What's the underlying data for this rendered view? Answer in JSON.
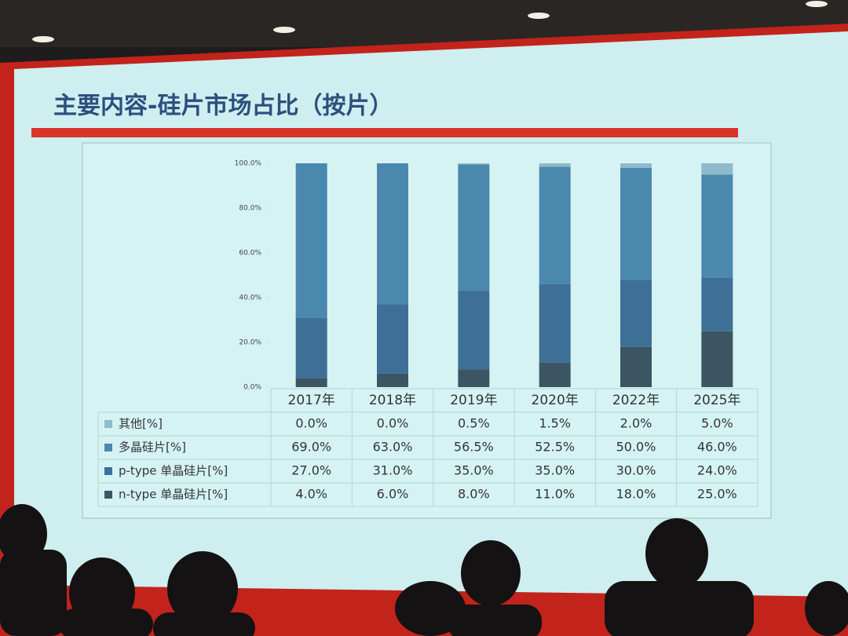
{
  "chart_data": {
    "type": "bar",
    "stacked": true,
    "title": "主要内容-硅片市场占比（按片）",
    "categories": [
      "2017年",
      "2018年",
      "2019年",
      "2020年",
      "2022年",
      "2025年"
    ],
    "series": [
      {
        "name": "其他[%]",
        "color": "#8fb9cc",
        "values": [
          0,
          0,
          0.5,
          1.5,
          2,
          5
        ],
        "value_labels": [
          "0.0%",
          "0.0%",
          "0.5%",
          "1.5%",
          "2.0%",
          "5.0%"
        ]
      },
      {
        "name": "多晶硅片[%]",
        "color": "#4b88ae",
        "values": [
          69,
          63,
          56.5,
          52.5,
          50,
          46
        ],
        "value_labels": [
          "69.0%",
          "63.0%",
          "56.5%",
          "52.5%",
          "50.0%",
          "46.0%"
        ]
      },
      {
        "name": "p-type 单晶硅片[%]",
        "color": "#3e6f96",
        "values": [
          27,
          31,
          35,
          35,
          30,
          24
        ],
        "value_labels": [
          "27.0%",
          "31.0%",
          "35.0%",
          "35.0%",
          "30.0%",
          "24.0%"
        ]
      },
      {
        "name": "n-type 单晶硅片[%]",
        "color": "#3b5563",
        "values": [
          4,
          6,
          8,
          11,
          18,
          25
        ],
        "value_labels": [
          "4.0%",
          "6.0%",
          "8.0%",
          "11.0%",
          "18.0%",
          "25.0%"
        ]
      }
    ],
    "ylim": [
      0,
      100
    ],
    "yticks": [
      {
        "value": 0,
        "label": "0.0%"
      },
      {
        "value": 20,
        "label": "20.0%"
      },
      {
        "value": 40,
        "label": "40.0%"
      },
      {
        "value": 60,
        "label": "60.0%"
      },
      {
        "value": 80,
        "label": "80.0%"
      },
      {
        "value": 100,
        "label": "100.0%"
      }
    ]
  }
}
